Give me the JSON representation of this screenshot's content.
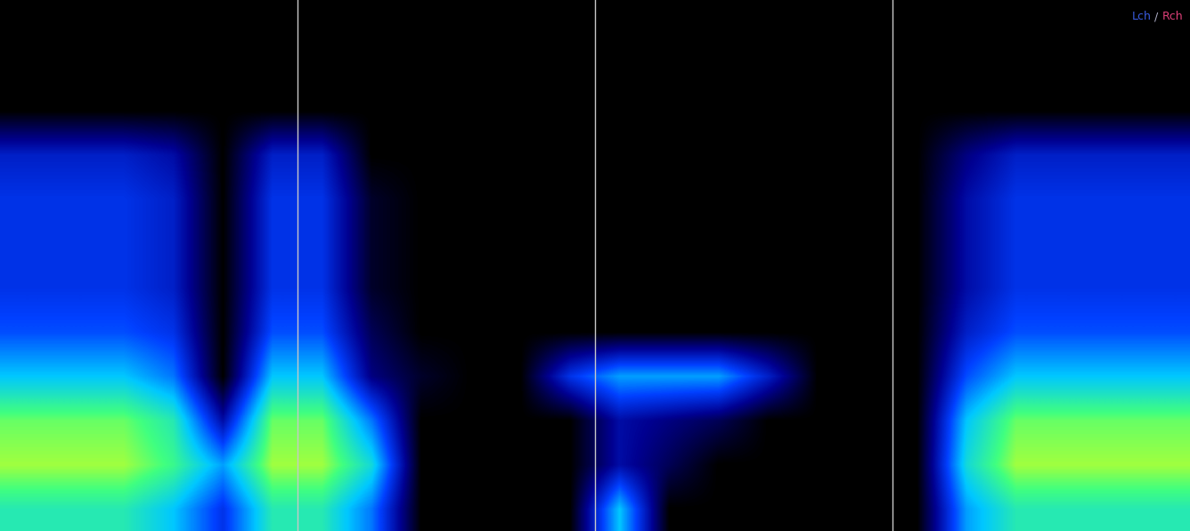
{
  "chart_data": {
    "type": "heatmap",
    "xlim": [
      0,
      24
    ],
    "ylim": [
      0,
      12
    ],
    "zlim": [
      0,
      1
    ],
    "tick_labels": false,
    "grid": false,
    "time_markers": [
      6,
      12,
      18
    ],
    "annotations": [
      {
        "text": "Lch",
        "color": "#3a5ce0"
      },
      {
        "text": " / ",
        "color": "#b0b0c8"
      },
      {
        "text": "Rch",
        "color": "#e0407a"
      }
    ],
    "cells_by_time": [
      [
        0.6,
        0.75,
        0.7,
        0.5,
        0.35,
        0.3,
        0.3,
        0.3,
        0.25,
        0,
        0,
        0
      ],
      [
        0.6,
        0.75,
        0.7,
        0.5,
        0.35,
        0.3,
        0.3,
        0.3,
        0.25,
        0,
        0,
        0
      ],
      [
        0.6,
        0.75,
        0.7,
        0.5,
        0.35,
        0.3,
        0.3,
        0.3,
        0.25,
        0,
        0,
        0
      ],
      [
        0.5,
        0.65,
        0.6,
        0.4,
        0.3,
        0.25,
        0.25,
        0.25,
        0.2,
        0,
        0,
        0
      ],
      [
        0.3,
        0.45,
        0.2,
        0,
        0,
        0,
        0,
        0,
        0,
        0,
        0,
        0
      ],
      [
        0.6,
        0.75,
        0.7,
        0.5,
        0.35,
        0.3,
        0.3,
        0.3,
        0.25,
        0,
        0,
        0
      ],
      [
        0.6,
        0.75,
        0.7,
        0.5,
        0.35,
        0.3,
        0.3,
        0.3,
        0.25,
        0,
        0,
        0
      ],
      [
        0.4,
        0.55,
        0.4,
        0.15,
        0.1,
        0.05,
        0.05,
        0.05,
        0,
        0,
        0,
        0
      ],
      [
        0,
        0,
        0,
        0.05,
        0,
        0,
        0,
        0,
        0,
        0,
        0,
        0
      ],
      [
        0,
        0,
        0,
        0,
        0,
        0,
        0,
        0,
        0,
        0,
        0,
        0
      ],
      [
        0,
        0,
        0,
        0,
        0,
        0,
        0,
        0,
        0,
        0,
        0,
        0
      ],
      [
        0,
        0,
        0,
        0.3,
        0,
        0,
        0,
        0,
        0,
        0,
        0,
        0
      ],
      [
        0.5,
        0.2,
        0.2,
        0.45,
        0,
        0,
        0,
        0,
        0,
        0,
        0,
        0
      ],
      [
        0,
        0.1,
        0.15,
        0.45,
        0,
        0,
        0,
        0,
        0,
        0,
        0,
        0
      ],
      [
        0,
        0,
        0.1,
        0.45,
        0,
        0,
        0,
        0,
        0,
        0,
        0,
        0
      ],
      [
        0,
        0,
        0,
        0.25,
        0,
        0,
        0,
        0,
        0,
        0,
        0,
        0
      ],
      [
        0,
        0,
        0,
        0,
        0,
        0,
        0,
        0,
        0,
        0,
        0,
        0
      ],
      [
        0,
        0,
        0,
        0,
        0,
        0,
        0,
        0,
        0,
        0,
        0,
        0
      ],
      [
        0,
        0,
        0,
        0,
        0,
        0,
        0,
        0,
        0,
        0,
        0,
        0
      ],
      [
        0.45,
        0.55,
        0.5,
        0.35,
        0.25,
        0.2,
        0.2,
        0.2,
        0.15,
        0,
        0,
        0
      ],
      [
        0.6,
        0.75,
        0.7,
        0.5,
        0.35,
        0.3,
        0.3,
        0.3,
        0.25,
        0,
        0,
        0
      ],
      [
        0.6,
        0.75,
        0.7,
        0.5,
        0.35,
        0.3,
        0.3,
        0.3,
        0.25,
        0,
        0,
        0
      ],
      [
        0.6,
        0.75,
        0.7,
        0.5,
        0.35,
        0.3,
        0.3,
        0.3,
        0.25,
        0,
        0,
        0
      ],
      [
        0.6,
        0.75,
        0.7,
        0.5,
        0.35,
        0.3,
        0.3,
        0.3,
        0.25,
        0,
        0,
        0
      ]
    ]
  }
}
